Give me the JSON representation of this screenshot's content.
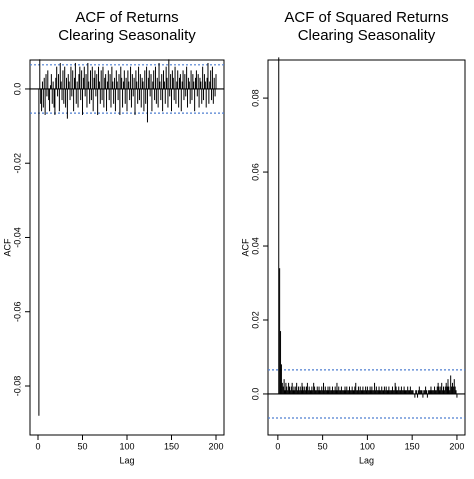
{
  "chart_data": [
    {
      "type": "bar",
      "title_lines": [
        "ACF of Returns",
        "Clearing Seasonality"
      ],
      "x_label": "Lag",
      "y_label": "ACF",
      "color": "#000000",
      "hlines": [
        0.0065,
        -0.0065
      ],
      "hline_color": "#4f7fd0",
      "xlim": [
        -9,
        209
      ],
      "xticks": [
        0,
        50,
        100,
        150,
        200
      ],
      "ylim": [
        -0.0932,
        0.0078
      ],
      "yticks": [
        {
          "value": 0,
          "label": "0.0"
        },
        -0.02,
        -0.04,
        -0.06,
        -0.08
      ],
      "x": [
        1,
        2,
        3,
        4,
        5,
        6,
        7,
        8,
        9,
        10,
        11,
        12,
        13,
        14,
        15,
        16,
        17,
        18,
        19,
        20,
        21,
        22,
        23,
        24,
        25,
        26,
        27,
        28,
        29,
        30,
        31,
        32,
        33,
        34,
        35,
        36,
        37,
        38,
        39,
        40,
        41,
        42,
        43,
        44,
        45,
        46,
        47,
        48,
        49,
        50,
        51,
        52,
        53,
        54,
        55,
        56,
        57,
        58,
        59,
        60,
        61,
        62,
        63,
        64,
        65,
        66,
        67,
        68,
        69,
        70,
        71,
        72,
        73,
        74,
        75,
        76,
        77,
        78,
        79,
        80,
        81,
        82,
        83,
        84,
        85,
        86,
        87,
        88,
        89,
        90,
        91,
        92,
        93,
        94,
        95,
        96,
        97,
        98,
        99,
        100,
        101,
        102,
        103,
        104,
        105,
        106,
        107,
        108,
        109,
        110,
        111,
        112,
        113,
        114,
        115,
        116,
        117,
        118,
        119,
        120,
        121,
        122,
        123,
        124,
        125,
        126,
        127,
        128,
        129,
        130,
        131,
        132,
        133,
        134,
        135,
        136,
        137,
        138,
        139,
        140,
        141,
        142,
        143,
        144,
        145,
        146,
        147,
        148,
        149,
        150,
        151,
        152,
        153,
        154,
        155,
        156,
        157,
        158,
        159,
        160,
        161,
        162,
        163,
        164,
        165,
        166,
        167,
        168,
        169,
        170,
        171,
        172,
        173,
        174,
        175,
        176,
        177,
        178,
        179,
        180,
        181,
        182,
        183,
        184,
        185,
        186,
        187,
        188,
        189,
        190,
        191,
        192,
        193,
        194,
        195,
        196,
        197,
        198,
        199,
        200
      ],
      "values": [
        -0.088,
        0.008,
        -0.004,
        -0.006,
        0.002,
        -0.005,
        0.003,
        -0.007,
        0.004,
        -0.002,
        0.005,
        -0.003,
        -0.006,
        0.001,
        0.004,
        -0.004,
        0.002,
        -0.005,
        -0.007,
        0.003,
        0.006,
        -0.002,
        0.004,
        -0.006,
        0.007,
        0.002,
        -0.003,
        0.005,
        -0.004,
        0.006,
        -0.005,
        0.003,
        -0.008,
        0.004,
        0.002,
        -0.003,
        0.006,
        -0.002,
        0.005,
        -0.006,
        0.003,
        0.007,
        -0.004,
        0.002,
        -0.005,
        0.004,
        0.006,
        -0.003,
        0.005,
        -0.007,
        0.003,
        0.006,
        -0.002,
        0.004,
        -0.005,
        0.007,
        0.002,
        -0.004,
        0.005,
        -0.003,
        0.006,
        -0.006,
        0.003,
        0.005,
        -0.002,
        0.004,
        -0.007,
        0.006,
        0.002,
        -0.004,
        0.005,
        -0.003,
        0.006,
        -0.005,
        0.003,
        0.004,
        -0.006,
        0.002,
        0.005,
        -0.003,
        0.004,
        -0.005,
        0.006,
        0.002,
        -0.004,
        0.003,
        -0.006,
        0.005,
        0.002,
        -0.003,
        0.004,
        -0.007,
        0.006,
        0.003,
        -0.005,
        0.002,
        0.005,
        -0.004,
        0.003,
        -0.006,
        0.005,
        0.002,
        -0.003,
        0.006,
        -0.005,
        0.004,
        -0.002,
        0.003,
        -0.007,
        0.005,
        0.002,
        -0.004,
        0.006,
        -0.003,
        0.004,
        -0.005,
        0.003,
        0.002,
        -0.006,
        0.005,
        -0.004,
        0.006,
        -0.009,
        0.003,
        0.005,
        -0.002,
        0.004,
        -0.006,
        0.002,
        0.005,
        -0.003,
        0.006,
        -0.004,
        0.003,
        -0.005,
        0.007,
        0.002,
        -0.003,
        0.004,
        -0.006,
        0.005,
        0.002,
        -0.004,
        0.006,
        0.003,
        -0.005,
        0.008,
        -0.002,
        0.004,
        -0.006,
        0.005,
        0.003,
        -0.003,
        0.006,
        -0.004,
        0.002,
        0.005,
        -0.005,
        0.003,
        0.004,
        -0.006,
        0.002,
        0.005,
        -0.003,
        0.004,
        -0.002,
        0.006,
        -0.005,
        0.003,
        0.002,
        -0.004,
        0.005,
        -0.003,
        0.004,
        0.002,
        -0.006,
        0.003,
        0.005,
        -0.002,
        0.004,
        -0.005,
        0.003,
        0.002,
        -0.004,
        0.006,
        -0.003,
        0.004,
        0.002,
        -0.005,
        0.003,
        0.007,
        -0.004,
        0.002,
        0.005,
        -0.003,
        0.006,
        -0.004,
        0.003,
        -0.002,
        0.004
      ]
    },
    {
      "type": "bar",
      "title_lines": [
        "ACF of Squared Returns",
        "Clearing Seasonality"
      ],
      "x_label": "Lag",
      "y_label": "ACF",
      "color": "#000000",
      "hlines": [
        0.0065,
        -0.0065
      ],
      "hline_color": "#4f7fd0",
      "xlim": [
        -11,
        209
      ],
      "xticks": [
        0,
        50,
        100,
        150,
        200
      ],
      "ylim": [
        -0.0111,
        0.0903
      ],
      "yticks": [
        {
          "value": 0,
          "label": "0.0"
        },
        0.02,
        0.04,
        0.06,
        0.08
      ],
      "x": [
        1,
        2,
        3,
        4,
        5,
        6,
        7,
        8,
        9,
        10,
        11,
        12,
        13,
        14,
        15,
        16,
        17,
        18,
        19,
        20,
        21,
        22,
        23,
        24,
        25,
        26,
        27,
        28,
        29,
        30,
        31,
        32,
        33,
        34,
        35,
        36,
        37,
        38,
        39,
        40,
        41,
        42,
        43,
        44,
        45,
        46,
        47,
        48,
        49,
        50,
        51,
        52,
        53,
        54,
        55,
        56,
        57,
        58,
        59,
        60,
        61,
        62,
        63,
        64,
        65,
        66,
        67,
        68,
        69,
        70,
        71,
        72,
        73,
        74,
        75,
        76,
        77,
        78,
        79,
        80,
        81,
        82,
        83,
        84,
        85,
        86,
        87,
        88,
        89,
        90,
        91,
        92,
        93,
        94,
        95,
        96,
        97,
        98,
        99,
        100,
        101,
        102,
        103,
        104,
        105,
        106,
        107,
        108,
        109,
        110,
        111,
        112,
        113,
        114,
        115,
        116,
        117,
        118,
        119,
        120,
        121,
        122,
        123,
        124,
        125,
        126,
        127,
        128,
        129,
        130,
        131,
        132,
        133,
        134,
        135,
        136,
        137,
        138,
        139,
        140,
        141,
        142,
        143,
        144,
        145,
        146,
        147,
        148,
        149,
        150,
        151,
        152,
        153,
        154,
        155,
        156,
        157,
        158,
        159,
        160,
        161,
        162,
        163,
        164,
        165,
        166,
        167,
        168,
        169,
        170,
        171,
        172,
        173,
        174,
        175,
        176,
        177,
        178,
        179,
        180,
        181,
        182,
        183,
        184,
        185,
        186,
        187,
        188,
        189,
        190,
        191,
        192,
        193,
        194,
        195,
        196,
        197,
        198,
        199,
        200
      ],
      "values": [
        0.091,
        0.034,
        0.017,
        0.008,
        0.003,
        0.002,
        0.004,
        0.001,
        0.003,
        0.002,
        0.001,
        0.003,
        0.002,
        0.001,
        0.002,
        0.003,
        0.001,
        0.002,
        0.001,
        0.002,
        0.003,
        0.001,
        0.002,
        0.001,
        0.002,
        0.001,
        0.003,
        0.002,
        0.001,
        0.002,
        0.001,
        0.002,
        0.003,
        0.001,
        0.002,
        0.001,
        0.001,
        0.002,
        0.001,
        0.003,
        0.002,
        0.001,
        0.001,
        0.002,
        0.001,
        0.002,
        0.001,
        0.001,
        0.002,
        0.001,
        0.003,
        0.001,
        0.002,
        0.001,
        0.001,
        0.002,
        0.001,
        0.002,
        0.001,
        0.001,
        0.002,
        0.001,
        0.001,
        0.002,
        0.001,
        0.003,
        0.001,
        0.002,
        0.001,
        0.001,
        0.002,
        0.001,
        0.001,
        0.001,
        0.002,
        0.001,
        0.002,
        0.001,
        0.001,
        0.002,
        0.001,
        0.001,
        0.002,
        0.001,
        0.001,
        0.002,
        0.003,
        0.001,
        0.001,
        0.002,
        0.001,
        0.002,
        0.001,
        0.001,
        0.002,
        0.001,
        0.001,
        0.002,
        0.001,
        0.002,
        0.001,
        0.001,
        0.002,
        0.001,
        0.002,
        0.001,
        0.001,
        0.003,
        0.001,
        0.002,
        0.001,
        0.001,
        0.002,
        0.001,
        0.001,
        0.002,
        0.001,
        0.001,
        0.002,
        0.001,
        0.002,
        0.001,
        0.001,
        0.002,
        0.001,
        0.001,
        0.001,
        0.002,
        0.001,
        0.001,
        0.003,
        0.002,
        0.001,
        0.001,
        0.002,
        0.001,
        0.001,
        0.002,
        0.001,
        0.001,
        0.002,
        0.001,
        0.001,
        0.001,
        0.002,
        0.001,
        0.001,
        0.002,
        0.001,
        0.001,
        0.001,
        0.0,
        -0.001,
        0.001,
        0.001,
        -0.001,
        0.001,
        0.002,
        0.001,
        0.001,
        0.001,
        -0.001,
        0.001,
        0.001,
        0.002,
        0.001,
        -0.001,
        0.001,
        0.001,
        0.001,
        0.002,
        0.001,
        0.001,
        0.001,
        0.002,
        0.001,
        0.001,
        0.002,
        0.003,
        0.002,
        0.001,
        0.002,
        0.003,
        0.001,
        0.002,
        0.001,
        0.002,
        0.003,
        0.002,
        0.004,
        0.002,
        0.001,
        0.005,
        0.002,
        0.003,
        0.002,
        0.004,
        0.002,
        0.001,
        -0.001
      ]
    }
  ]
}
